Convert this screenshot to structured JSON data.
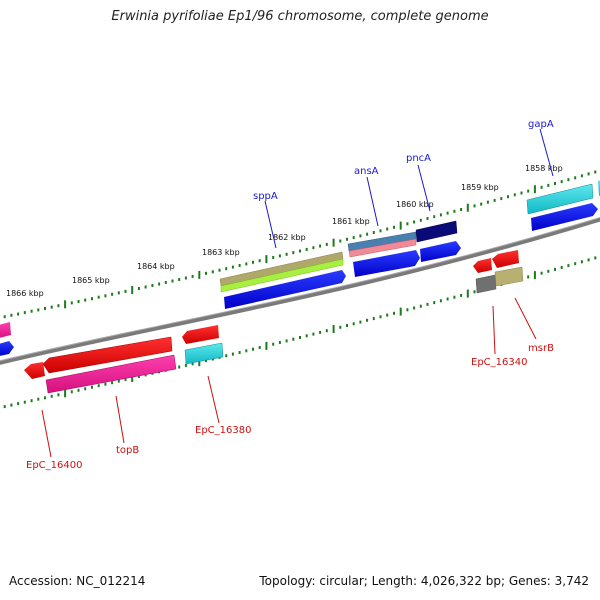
{
  "title": "Erwinia pyrifoliae Ep1/96 chromosome, complete genome",
  "footer": {
    "accession_label": "Accession:",
    "accession": "NC_012214",
    "summary": "Topology: circular; Length: 4,026,322 bp; Genes: 3,742"
  },
  "colors": {
    "backbone": "#7a7a7a",
    "tick": "#1f7a1f",
    "label_blue": "#1a1acc",
    "label_red": "#cc1010"
  },
  "kbp_labels": [
    "1866 kbp",
    "1865 kbp",
    "1864 kbp",
    "1863 kbp",
    "1862 kbp",
    "1861 kbp",
    "1860 kbp",
    "1859 kbp",
    "1858 kbp"
  ],
  "genes": [
    {
      "name": "sppA",
      "color": "blue"
    },
    {
      "name": "ansA",
      "color": "blue"
    },
    {
      "name": "pncA",
      "color": "blue"
    },
    {
      "name": "gapA",
      "color": "blue"
    },
    {
      "name": "EpC_16400",
      "color": "red"
    },
    {
      "name": "topB",
      "color": "red"
    },
    {
      "name": "EpC_16380",
      "color": "red"
    },
    {
      "name": "EpC_16340",
      "color": "red"
    },
    {
      "name": "msrB",
      "color": "red"
    }
  ]
}
